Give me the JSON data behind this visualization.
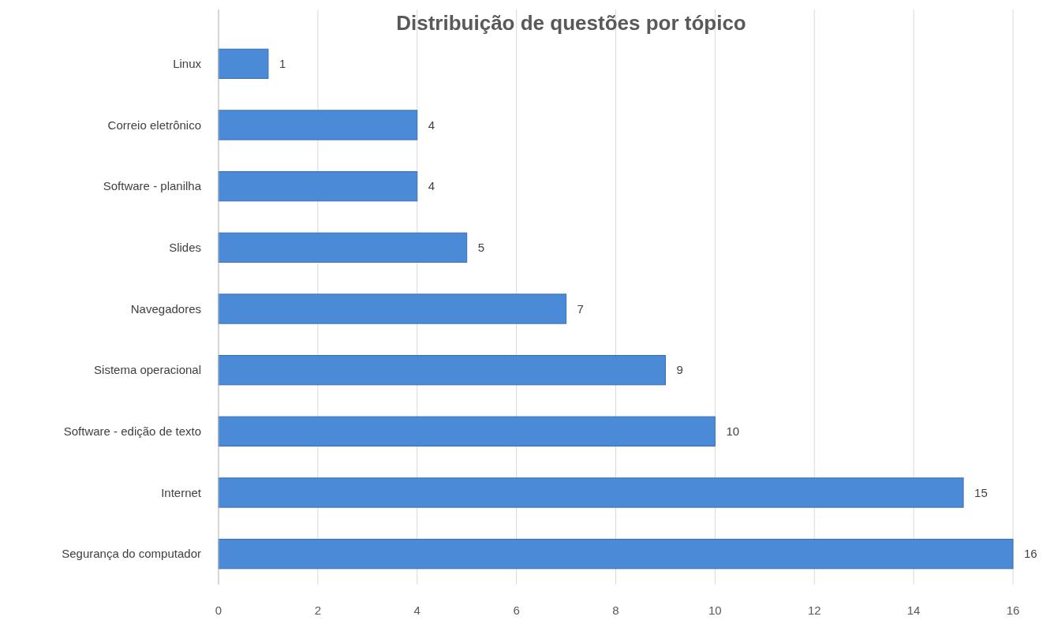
{
  "chart_data": {
    "type": "bar",
    "orientation": "horizontal",
    "title": "Distribuição de questões por tópico",
    "categories": [
      "Linux",
      "Correio eletrônico",
      "Software - planilha",
      "Slides",
      "Navegadores",
      "Sistema operacional",
      "Software - edição de texto",
      "Internet",
      "Segurança do computador"
    ],
    "values": [
      1,
      4,
      4,
      5,
      7,
      9,
      10,
      15,
      16
    ],
    "color": "#4a8ad6",
    "xlim": [
      0,
      16
    ],
    "xticks": [
      0,
      2,
      4,
      6,
      8,
      10,
      12,
      14,
      16
    ],
    "grid": "x",
    "data_labels": true
  }
}
